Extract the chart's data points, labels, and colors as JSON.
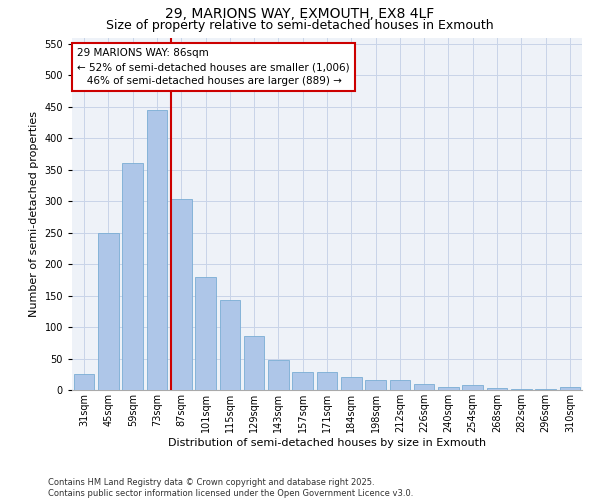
{
  "title": "29, MARIONS WAY, EXMOUTH, EX8 4LF",
  "subtitle": "Size of property relative to semi-detached houses in Exmouth",
  "xlabel": "Distribution of semi-detached houses by size in Exmouth",
  "ylabel": "Number of semi-detached properties",
  "categories": [
    "31sqm",
    "45sqm",
    "59sqm",
    "73sqm",
    "87sqm",
    "101sqm",
    "115sqm",
    "129sqm",
    "143sqm",
    "157sqm",
    "171sqm",
    "184sqm",
    "198sqm",
    "212sqm",
    "226sqm",
    "240sqm",
    "254sqm",
    "268sqm",
    "282sqm",
    "296sqm",
    "310sqm"
  ],
  "values": [
    25,
    250,
    360,
    445,
    303,
    180,
    143,
    85,
    47,
    29,
    29,
    20,
    16,
    16,
    9,
    5,
    8,
    3,
    2,
    1,
    5
  ],
  "bar_color": "#aec6e8",
  "bar_edge_color": "#7aadd4",
  "vline_color": "#cc0000",
  "vline_index": 3.575,
  "annotation_line1": "29 MARIONS WAY: 86sqm",
  "annotation_line2": "← 52% of semi-detached houses are smaller (1,006)",
  "annotation_line3": "46% of semi-detached houses are larger (889) →",
  "annotation_box_color": "#cc0000",
  "ylim": [
    0,
    560
  ],
  "yticks": [
    0,
    50,
    100,
    150,
    200,
    250,
    300,
    350,
    400,
    450,
    500,
    550
  ],
  "grid_color": "#c8d4e8",
  "background_color": "#eef2f8",
  "footer": "Contains HM Land Registry data © Crown copyright and database right 2025.\nContains public sector information licensed under the Open Government Licence v3.0.",
  "title_fontsize": 10,
  "subtitle_fontsize": 9,
  "xlabel_fontsize": 8,
  "ylabel_fontsize": 8,
  "tick_fontsize": 7,
  "footer_fontsize": 6,
  "annot_fontsize": 7.5
}
